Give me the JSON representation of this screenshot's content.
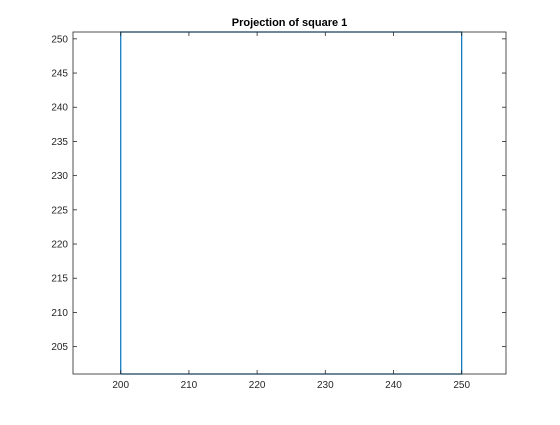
{
  "chart_data": {
    "type": "line",
    "title": "Projection of square 1",
    "xlabel": "",
    "ylabel": "",
    "xlim": [
      193,
      256.5
    ],
    "ylim": [
      201,
      251
    ],
    "xticks": [
      200,
      210,
      220,
      230,
      240,
      250
    ],
    "yticks": [
      205,
      210,
      215,
      220,
      225,
      230,
      235,
      240,
      245,
      250
    ],
    "grid": false,
    "series": [
      {
        "x": [
          200,
          250,
          250,
          200,
          200
        ],
        "y": [
          201,
          201,
          251,
          251,
          201
        ],
        "color": "#0072BD"
      }
    ]
  }
}
